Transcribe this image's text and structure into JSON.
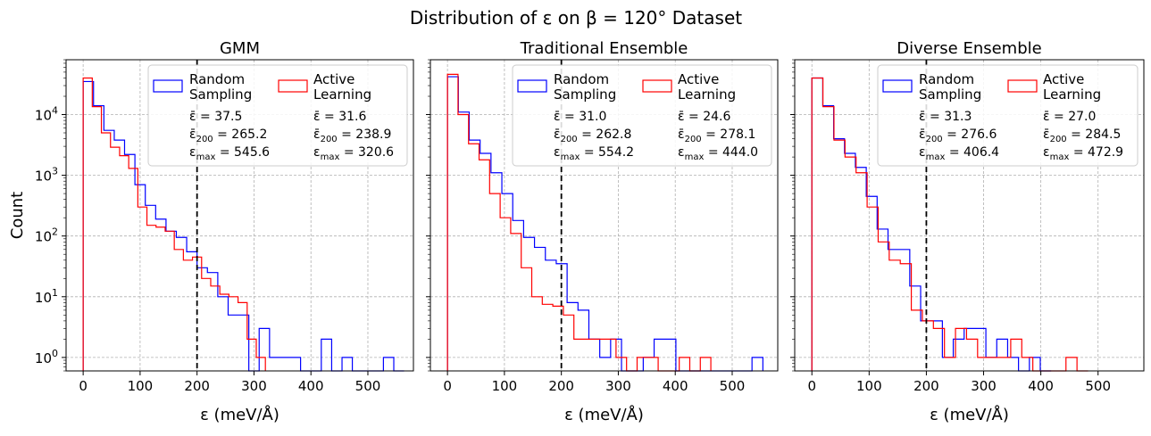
{
  "suptitle": "Distribution of ε on β = 120° Dataset",
  "chart_data": [
    {
      "type": "histogram",
      "title": "GMM",
      "xlabel": "ε (meV/Å)",
      "ylabel": "Count",
      "yscale": "log",
      "xlim": [
        -30,
        580
      ],
      "ylim": [
        0.6,
        80000
      ],
      "xticks": [
        0,
        100,
        200,
        300,
        400,
        500
      ],
      "yticks": [
        1,
        10,
        100,
        1000,
        10000
      ],
      "threshold_line": 200,
      "series": [
        {
          "name": "Random Sampling",
          "color": "#0000ff",
          "bin_edges": [
            0,
            18.2,
            36.4,
            54.6,
            72.7,
            90.9,
            109.1,
            127.3,
            145.5,
            163.6,
            181.8,
            200,
            218.2,
            236.4,
            254.6,
            272.7,
            290.9,
            309.1,
            327.3,
            345.5,
            363.6,
            381.8,
            400,
            418.2,
            436.4,
            454.6,
            472.7,
            490.9,
            509.1,
            527.3,
            545.5,
            563.6
          ],
          "counts": [
            35000,
            14000,
            5500,
            3800,
            2200,
            700,
            320,
            190,
            120,
            95,
            55,
            30,
            25,
            10,
            5,
            5,
            0,
            3,
            1,
            1,
            1,
            0,
            0,
            2,
            0,
            1,
            0,
            0,
            0,
            1,
            0
          ],
          "stats": {
            "mean": "37.5",
            "mean200": "265.2",
            "max": "545.6"
          }
        },
        {
          "name": "Active Learning",
          "color": "#ff0000",
          "bin_edges": [
            0,
            16,
            32,
            48,
            64,
            80,
            96,
            112,
            128,
            144,
            160,
            176,
            192,
            208,
            224,
            240,
            256,
            272,
            288,
            304,
            320
          ],
          "counts": [
            40000,
            13500,
            5000,
            2900,
            2100,
            1300,
            300,
            150,
            140,
            120,
            60,
            40,
            45,
            20,
            15,
            11,
            10,
            8,
            2,
            1
          ],
          "stats": {
            "mean": "31.6",
            "mean200": "238.9",
            "max": "320.6"
          }
        }
      ]
    },
    {
      "type": "histogram",
      "title": "Traditional Ensemble",
      "xlabel": "ε (meV/Å)",
      "yscale": "log",
      "xlim": [
        -30,
        580
      ],
      "ylim": [
        0.6,
        80000
      ],
      "xticks": [
        0,
        100,
        200,
        300,
        400,
        500
      ],
      "threshold_line": 200,
      "series": [
        {
          "name": "Random Sampling",
          "color": "#0000ff",
          "bin_edges": [
            0,
            19.1,
            38.2,
            57.3,
            76.4,
            95.5,
            114.6,
            133.7,
            152.8,
            171.9,
            191,
            210.1,
            229.2,
            248.3,
            267.4,
            286.5,
            305.6,
            324.7,
            343.8,
            362.9,
            382,
            401.1,
            420.2,
            439.3,
            458.4,
            477.5,
            496.6,
            515.7,
            534.8,
            553.9
          ],
          "counts": [
            42000,
            11000,
            3800,
            2300,
            1100,
            500,
            180,
            95,
            65,
            40,
            35,
            8,
            6,
            2,
            1,
            2,
            0,
            0,
            1,
            2,
            2,
            0,
            0,
            0,
            0,
            0,
            0,
            0,
            1
          ],
          "stats": {
            "mean": "31.0",
            "mean200": "262.8",
            "max": "554.2"
          }
        },
        {
          "name": "Active Learning",
          "color": "#ff0000",
          "bin_edges": [
            0,
            18.5,
            37,
            55.5,
            74,
            92.5,
            111,
            129.5,
            148,
            166.5,
            185,
            203.5,
            222,
            240.5,
            259,
            277.5,
            296,
            314.5,
            333,
            351.5,
            370,
            388.5,
            407,
            425.5,
            444,
            462.5
          ],
          "counts": [
            46000,
            10000,
            3300,
            1800,
            500,
            200,
            110,
            30,
            10,
            7.5,
            7,
            5,
            2,
            2,
            2,
            2,
            1,
            0,
            1,
            1,
            0,
            0,
            1,
            0,
            1
          ],
          "stats": {
            "mean": "24.6",
            "mean200": "278.1",
            "max": "444.0"
          }
        }
      ]
    },
    {
      "type": "histogram",
      "title": "Diverse Ensemble",
      "xlabel": "ε (meV/Å)",
      "yscale": "log",
      "xlim": [
        -30,
        580
      ],
      "ylim": [
        0.6,
        80000
      ],
      "xticks": [
        0,
        100,
        200,
        300,
        400,
        500
      ],
      "threshold_line": 200,
      "series": [
        {
          "name": "Random Sampling",
          "color": "#0000ff",
          "bin_edges": [
            0,
            19,
            38,
            57,
            76,
            95,
            114,
            133,
            152,
            171,
            190,
            209,
            228,
            247,
            266,
            285,
            304,
            323,
            342,
            361,
            380,
            399,
            418
          ],
          "counts": [
            40000,
            14000,
            4000,
            2300,
            1350,
            450,
            130,
            60,
            60,
            15,
            4,
            4,
            1,
            2,
            3,
            3,
            1,
            2,
            1,
            0,
            1,
            0
          ],
          "stats": {
            "mean": "31.3",
            "mean200": "276.6",
            "max": "406.4"
          }
        },
        {
          "name": "Active Learning",
          "color": "#ff0000",
          "bin_edges": [
            0,
            19.3,
            38.6,
            57.9,
            77.2,
            96.5,
            115.8,
            135.1,
            154.4,
            173.7,
            193,
            212.3,
            231.6,
            250.9,
            270.2,
            289.5,
            308.8,
            328.1,
            347.4,
            366.7,
            386,
            405.3,
            424.6,
            443.9,
            463.2,
            482.5
          ],
          "counts": [
            40000,
            13500,
            3800,
            2000,
            1100,
            300,
            80,
            40,
            35,
            6,
            4,
            3,
            1,
            3,
            2,
            1,
            1,
            1,
            2,
            1,
            0,
            0,
            0,
            1,
            0
          ],
          "stats": {
            "mean": "27.0",
            "mean200": "284.5",
            "max": "472.9"
          }
        }
      ]
    }
  ],
  "legend": {
    "random": [
      "Random",
      "Sampling"
    ],
    "active": [
      "Active",
      "Learning"
    ]
  },
  "stat_labels": {
    "mean": "ε̄ = ",
    "mean200_base": "ε̄",
    "mean200_sub": "200",
    "max_base": "ε",
    "max_sub": "max",
    "eq": " = "
  }
}
